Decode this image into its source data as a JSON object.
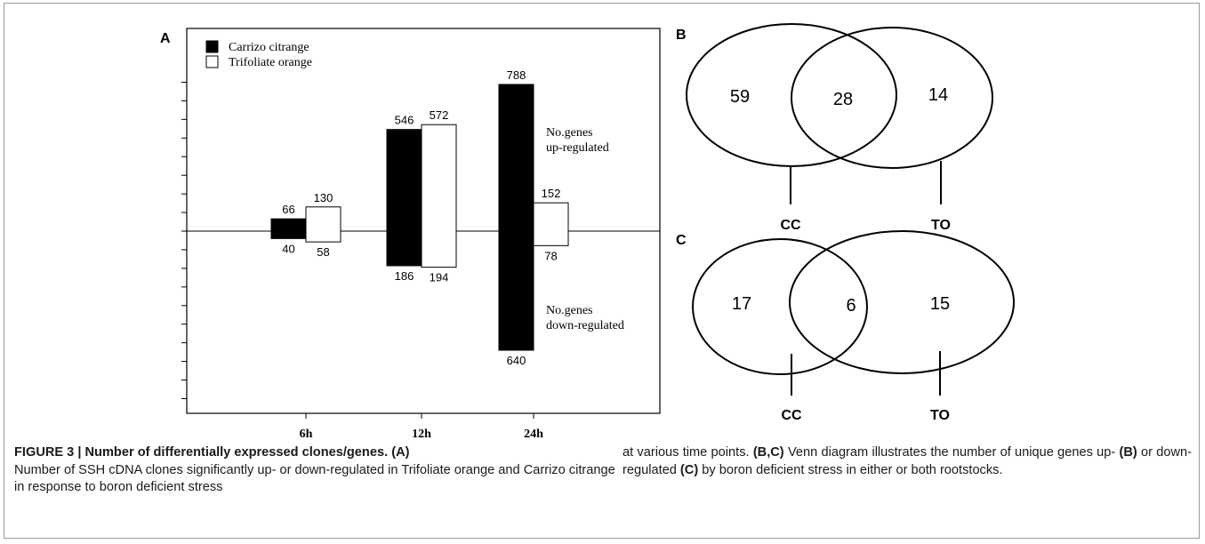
{
  "chart_data": [
    {
      "type": "bar",
      "panel_label": "A",
      "categories": [
        "6h",
        "12h",
        "24h"
      ],
      "series": [
        {
          "name": "Carrizo citrange",
          "color": "#000000",
          "up": [
            66,
            546,
            788
          ],
          "down": [
            40,
            186,
            640
          ]
        },
        {
          "name": "Trifoliate orange",
          "color": "#ffffff",
          "up": [
            130,
            572,
            152
          ],
          "down": [
            58,
            194,
            78
          ]
        }
      ],
      "annotations": {
        "up": [
          "No.genes",
          "up-regulated"
        ],
        "down": [
          "No.genes",
          "down-regulated"
        ]
      },
      "ylim": [
        -1000,
        800
      ]
    },
    {
      "type": "venn",
      "panel_label": "B",
      "sets": [
        "CC",
        "TO"
      ],
      "only_first": "59",
      "intersection": "28",
      "only_second": "14"
    },
    {
      "type": "venn",
      "panel_label": "C",
      "sets": [
        "CC",
        "TO"
      ],
      "only_first": "17",
      "intersection": "6",
      "only_second": "15"
    }
  ],
  "caption": {
    "title": "FIGURE 3 | Number of differentially expressed clones/genes.",
    "ref_a": "(A)",
    "left_text": "Number of SSH cDNA clones significantly up- or down-regulated in Trifoliate orange and Carrizo citrange in response to boron deficient stress",
    "right_1": "at various time points.",
    "ref_bc": "(B,C)",
    "right_2": "Venn diagram illustrates the number of unique genes up-",
    "ref_b": "(B)",
    "right_3": "or down-regulated",
    "ref_c": "(C)",
    "right_4": "by boron deficient stress in either or both rootstocks."
  }
}
